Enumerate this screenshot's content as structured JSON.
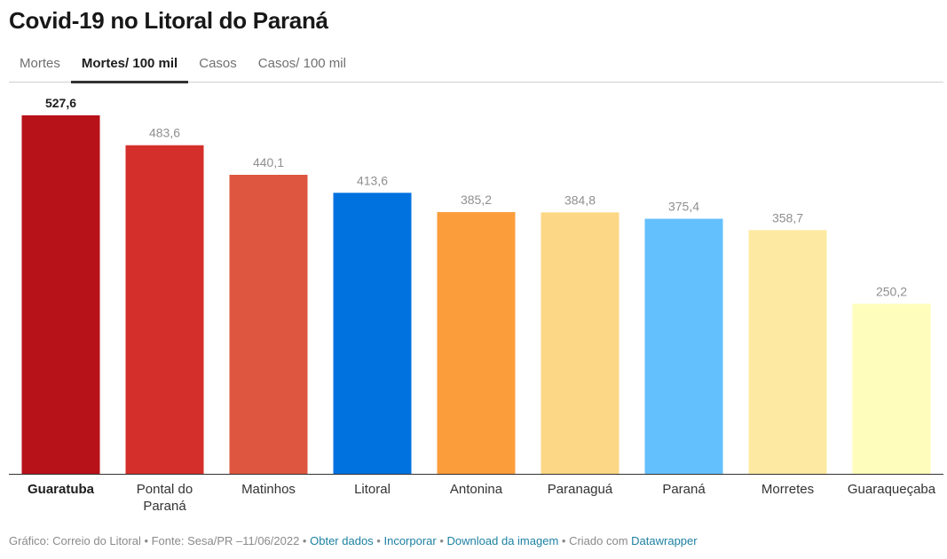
{
  "title": "Covid-19 no Litoral do Paraná",
  "tabs": [
    {
      "label": "Mortes",
      "active": false
    },
    {
      "label": "Mortes/ 100 mil",
      "active": true
    },
    {
      "label": "Casos",
      "active": false
    },
    {
      "label": "Casos/ 100 mil",
      "active": false
    }
  ],
  "chart_data": {
    "type": "bar",
    "categories": [
      "Guaratuba",
      "Pontal do Paraná",
      "Matinhos",
      "Litoral",
      "Antonina",
      "Paranaguá",
      "Paraná",
      "Morretes",
      "Guaraqueçaba"
    ],
    "values": [
      527.6,
      483.6,
      440.1,
      413.6,
      385.2,
      384.8,
      375.4,
      358.7,
      250.2
    ],
    "value_labels": [
      "527,6",
      "483,6",
      "440,1",
      "413,6",
      "385,2",
      "384,8",
      "375,4",
      "358,7",
      "250,2"
    ],
    "colors": [
      "#b71119",
      "#d42f2a",
      "#df5640",
      "#0072e0",
      "#fc9d3c",
      "#fcd886",
      "#64c0fd",
      "#fde9a1",
      "#fefdbb"
    ],
    "highlight_index": 0,
    "ylim": [
      0,
      527.6
    ]
  },
  "footer": {
    "source": "Gráfico: Correio do Litoral • Fonte: Sesa/PR –11/06/2022 •",
    "get_data": "Obter dados",
    "sep1": "•",
    "embed": "Incorporar",
    "sep2": "•",
    "download": "Download da imagem",
    "created_with": "• Criado com",
    "datawrapper": "Datawrapper"
  }
}
